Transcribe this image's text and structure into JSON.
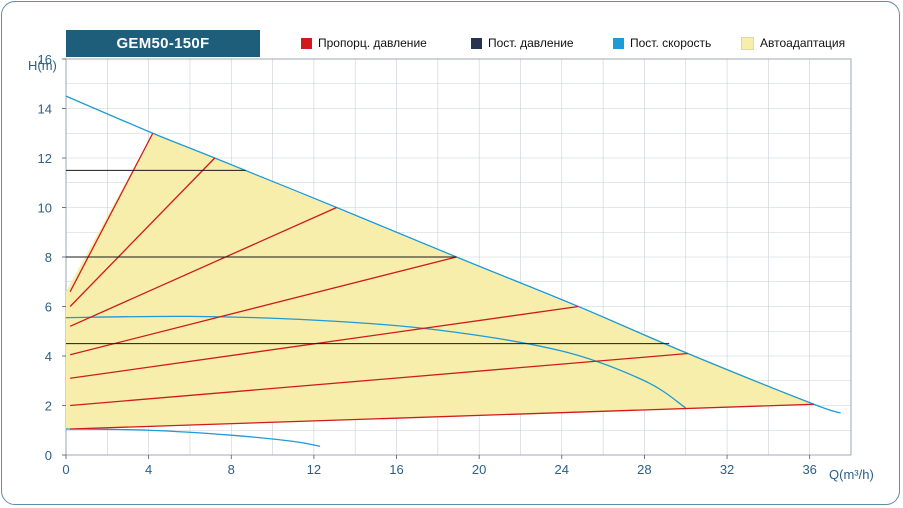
{
  "title": "GEM50-150F",
  "legend": [
    {
      "label": "Пропорц. давление",
      "color": "#d11b1b"
    },
    {
      "label": "Пост. давление",
      "color": "#27344f"
    },
    {
      "label": "Пост. скорость",
      "color": "#1e9ad6"
    },
    {
      "label": "Автоадаптация",
      "color": "#f6eeaa"
    }
  ],
  "chart_data": {
    "type": "line",
    "xlabel": "Q(m³/h)",
    "ylabel": "H(m)",
    "xlim": [
      0,
      38
    ],
    "ylim": [
      0,
      16
    ],
    "x_ticks": [
      0,
      4,
      8,
      12,
      16,
      20,
      24,
      28,
      32,
      36
    ],
    "y_ticks": [
      0,
      2,
      4,
      6,
      8,
      10,
      12,
      14,
      16
    ],
    "grid": true,
    "autoadaptation_area": [
      [
        0,
        1.05
      ],
      [
        0,
        6.6
      ],
      [
        4.2,
        13.0
      ],
      [
        36.2,
        2.05
      ],
      [
        0,
        1.05
      ]
    ],
    "series": [
      {
        "group": "Пост. скорость",
        "points": [
          [
            0,
            14.5
          ],
          [
            4.2,
            13.0
          ],
          [
            7.2,
            12.0
          ],
          [
            13.1,
            10.0
          ],
          [
            18.9,
            8.0
          ],
          [
            24.8,
            6.0
          ],
          [
            30.1,
            4.1
          ],
          [
            36.2,
            2.05
          ],
          [
            37.5,
            1.7
          ]
        ]
      },
      {
        "group": "Пост. скорость",
        "points": [
          [
            0,
            5.55
          ],
          [
            6,
            5.6
          ],
          [
            12,
            5.45
          ],
          [
            18,
            5.05
          ],
          [
            24,
            4.2
          ],
          [
            28,
            3.0
          ],
          [
            30,
            1.9
          ]
        ]
      },
      {
        "group": "Пост. скорость",
        "points": [
          [
            0,
            1.05
          ],
          [
            4,
            1.0
          ],
          [
            8,
            0.8
          ],
          [
            11,
            0.55
          ],
          [
            12.3,
            0.35
          ]
        ]
      },
      {
        "group": "Пропорц. давление",
        "points": [
          [
            0.2,
            6.6
          ],
          [
            4.2,
            13.0
          ]
        ]
      },
      {
        "group": "Пропорц. давление",
        "points": [
          [
            0.2,
            6.0
          ],
          [
            7.2,
            12.0
          ]
        ]
      },
      {
        "group": "Пропорц. давление",
        "points": [
          [
            0.2,
            5.2
          ],
          [
            13.1,
            10.0
          ]
        ]
      },
      {
        "group": "Пропорц. давление",
        "points": [
          [
            0.2,
            4.05
          ],
          [
            18.9,
            8.0
          ]
        ]
      },
      {
        "group": "Пропорц. давление",
        "points": [
          [
            0.2,
            3.1
          ],
          [
            24.8,
            6.0
          ]
        ]
      },
      {
        "group": "Пропорц. давление",
        "points": [
          [
            0.2,
            2.0
          ],
          [
            30.1,
            4.1
          ]
        ]
      },
      {
        "group": "Пропорц. давление",
        "points": [
          [
            0.2,
            1.05
          ],
          [
            36.2,
            2.05
          ]
        ]
      },
      {
        "group": "Пост. давление",
        "points": [
          [
            0,
            11.5
          ],
          [
            8.7,
            11.5
          ]
        ]
      },
      {
        "group": "Пост. давление",
        "points": [
          [
            0,
            8.0
          ],
          [
            18.9,
            8.0
          ]
        ]
      },
      {
        "group": "Пост. давление",
        "points": [
          [
            0,
            4.5
          ],
          [
            29.2,
            4.5
          ]
        ]
      }
    ]
  }
}
